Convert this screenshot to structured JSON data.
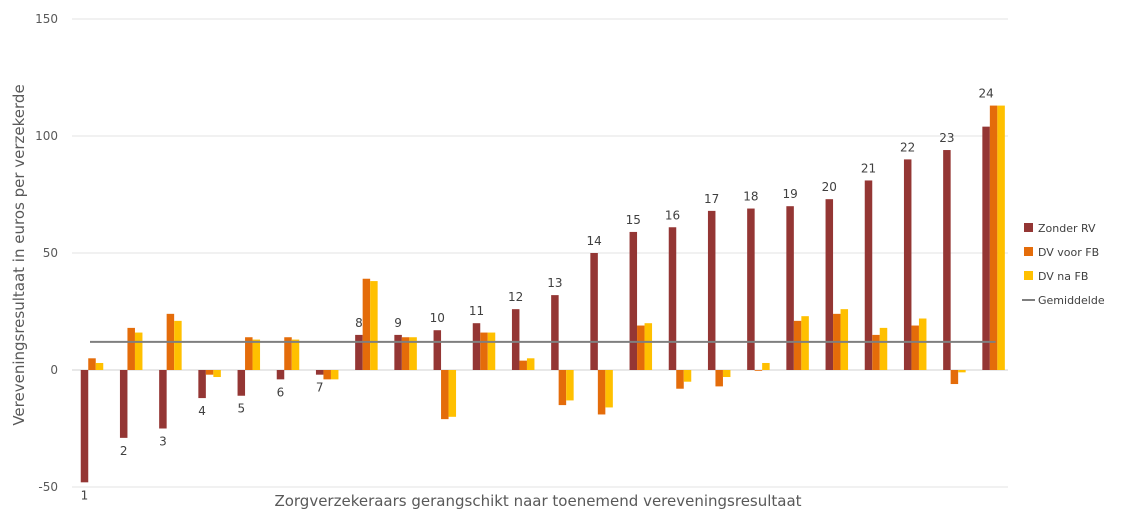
{
  "chart_data": {
    "type": "bar",
    "title": "",
    "xlabel": "Zorgverzekeraars gerangschikt naar toenemend vereveningsresultaat",
    "ylabel": "Vereveningsresultaat in euros per verzekerde",
    "ylim": [
      -50,
      150
    ],
    "yticks": [
      -50,
      0,
      50,
      100,
      150
    ],
    "grid": true,
    "legend_position": "right",
    "categories": [
      "1",
      "2",
      "3",
      "4",
      "5",
      "6",
      "7",
      "8",
      "9",
      "10",
      "11",
      "12",
      "13",
      "14",
      "15",
      "16",
      "17",
      "18",
      "19",
      "20",
      "21",
      "22",
      "23",
      "24"
    ],
    "series": [
      {
        "name": "Zonder RV",
        "color": "#943634",
        "values": [
          -48,
          -29,
          -25,
          -12,
          -11,
          -4,
          -2,
          15,
          15,
          17,
          20,
          26,
          32,
          50,
          59,
          61,
          68,
          69,
          70,
          73,
          81,
          90,
          94,
          104
        ]
      },
      {
        "name": "DV voor FB",
        "color": "#E46C0A",
        "values": [
          5,
          18,
          24,
          -2,
          14,
          14,
          -4,
          39,
          14,
          -21,
          16,
          4,
          -15,
          -19,
          19,
          -8,
          -7,
          0,
          21,
          24,
          15,
          19,
          -6,
          113
        ]
      },
      {
        "name": "DV na FB",
        "color": "#FFC000",
        "values": [
          3,
          16,
          21,
          -3,
          13,
          13,
          -4,
          38,
          14,
          -20,
          16,
          5,
          -13,
          -16,
          20,
          -5,
          -3,
          3,
          23,
          26,
          18,
          22,
          -1,
          113
        ]
      }
    ],
    "reference_line": {
      "name": "Gemiddelde",
      "color": "#7F7F7F",
      "value": 12
    }
  }
}
